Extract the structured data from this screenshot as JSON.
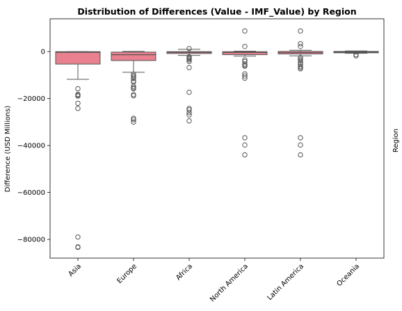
{
  "chart_data": {
    "type": "box",
    "title": "Distribution of Differences (Value - IMF_Value) by Region",
    "xlabel": "",
    "ylabel": "Difference (USD Millions)",
    "right_label": "Region",
    "ylim": [
      -88000,
      14000
    ],
    "yticks": [
      0,
      -20000,
      -40000,
      -60000,
      -80000
    ],
    "ytick_labels": [
      "0",
      "−20000",
      "−40000",
      "−60000",
      "−80000"
    ],
    "box_color": "#e8808f",
    "edge_color": "#555555",
    "categories": [
      "Asia",
      "Europe",
      "Africa",
      "North America",
      "Latin America",
      "Oceania"
    ],
    "boxes": [
      {
        "q1": -5300,
        "median": -300,
        "q3": 0,
        "whisker_low": -11800,
        "whisker_high": 0,
        "outliers": [
          -15800,
          -18200,
          -18600,
          -18900,
          -22000,
          -24200,
          -79000,
          -83200,
          -83400
        ]
      },
      {
        "q1": -3800,
        "median": -1300,
        "q3": -200,
        "whisker_low": -8800,
        "whisker_high": 100,
        "outliers": [
          -9600,
          -10200,
          -10800,
          -11400,
          -12500,
          -13000,
          -14800,
          -15400,
          -15800,
          -18300,
          -18800,
          -28400,
          -29000,
          -30000
        ]
      },
      {
        "q1": -800,
        "median": -300,
        "q3": 0,
        "whisker_low": -1600,
        "whisker_high": 1000,
        "outliers": [
          1300,
          -2200,
          -2600,
          -3000,
          -3500,
          -4200,
          -6800,
          -17300,
          -24200,
          -24800,
          -26000,
          -27000,
          -29500
        ]
      },
      {
        "q1": -1300,
        "median": -400,
        "q3": 0,
        "whisker_low": -1900,
        "whisker_high": 200,
        "outliers": [
          8800,
          2200,
          -3500,
          -4200,
          -5300,
          -5800,
          -6200,
          -9500,
          -10400,
          -11300,
          -36700,
          -39800,
          -44000
        ]
      },
      {
        "q1": -1000,
        "median": -400,
        "q3": 100,
        "whisker_low": -1800,
        "whisker_high": 600,
        "outliers": [
          8800,
          3400,
          2200,
          -2500,
          -3200,
          -3800,
          -4600,
          -5300,
          -6200,
          -6800,
          -7300,
          -36700,
          -39800,
          -44000
        ]
      },
      {
        "q1": -500,
        "median": -200,
        "q3": 100,
        "whisker_low": -700,
        "whisker_high": 300,
        "outliers": [
          -1300,
          -1800
        ]
      }
    ]
  }
}
